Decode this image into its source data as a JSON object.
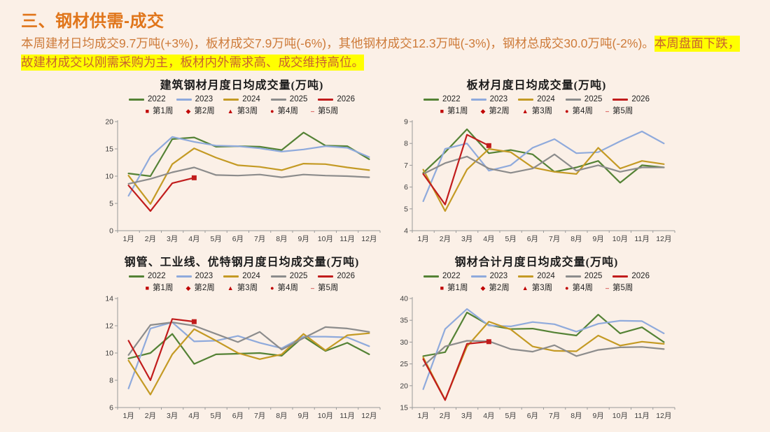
{
  "page": {
    "background": "#FBF0E7"
  },
  "header": {
    "title": "三、钢材供需-成交",
    "color": "#E0751A"
  },
  "summary": {
    "normal": "本周建材日均成交9.7万吨(+3%)，板材成交7.9万吨(-6%)，其他钢材成交12.3万吨(-3%)，钢材总成交30.0万吨(-2%)。",
    "highlight": "本周盘面下跌，故建材成交以刚需采购为主，板材内外需求高、成交维持高位。",
    "text_color": "#CE7B3A",
    "highlight_bg": "#FFFF00",
    "highlight_color": "#C8622F"
  },
  "week_legend": {
    "color": "#C00000",
    "items": [
      {
        "marker": "■",
        "label": "第1周"
      },
      {
        "marker": "◆",
        "label": "第2周"
      },
      {
        "marker": "▲",
        "label": "第3周"
      },
      {
        "marker": "●",
        "label": "第4周"
      },
      {
        "marker": "–",
        "label": "第5周"
      }
    ]
  },
  "chart_data": [
    {
      "type": "line",
      "title": "建筑钢材月度日均成交量(万吨)",
      "categories": [
        "1月",
        "2月",
        "3月",
        "4月",
        "5月",
        "6月",
        "7月",
        "8月",
        "9月",
        "10月",
        "11月",
        "12月"
      ],
      "ylim": [
        0,
        20
      ],
      "yticks": [
        0,
        5,
        10,
        15,
        20
      ],
      "legend_position": "top",
      "grid": false,
      "series": [
        {
          "name": "2022",
          "color": "#548235",
          "values": [
            10.5,
            10.0,
            16.8,
            17.1,
            15.4,
            15.5,
            15.4,
            14.8,
            18.0,
            15.6,
            15.5,
            13.1
          ]
        },
        {
          "name": "2023",
          "color": "#8FAADC",
          "values": [
            6.4,
            13.6,
            17.2,
            16.3,
            15.6,
            15.5,
            15.1,
            14.5,
            14.9,
            15.5,
            15.2,
            13.5
          ]
        },
        {
          "name": "2024",
          "color": "#C49A24",
          "values": [
            10.1,
            4.9,
            12.2,
            15.1,
            13.4,
            12.0,
            11.7,
            11.1,
            12.3,
            12.2,
            11.6,
            11.1
          ]
        },
        {
          "name": "2025",
          "color": "#8C8C8C",
          "values": [
            8.6,
            9.5,
            10.7,
            11.6,
            10.2,
            10.1,
            10.3,
            9.8,
            10.3,
            10.1,
            10.0,
            9.8
          ]
        },
        {
          "name": "2026",
          "color": "#C11C1C",
          "values": [
            8.3,
            3.6,
            8.7,
            9.7
          ],
          "end_marker": "square"
        }
      ]
    },
    {
      "type": "line",
      "title": "板材月度日均成交量(万吨)",
      "categories": [
        "1月",
        "2月",
        "3月",
        "4月",
        "5月",
        "6月",
        "7月",
        "8月",
        "9月",
        "10月",
        "11月",
        "12月"
      ],
      "ylim": [
        4,
        9
      ],
      "yticks": [
        4,
        5,
        6,
        7,
        8,
        9
      ],
      "legend_position": "top",
      "grid": false,
      "series": [
        {
          "name": "2022",
          "color": "#548235",
          "values": [
            6.65,
            7.6,
            8.65,
            7.55,
            7.7,
            7.5,
            6.7,
            6.9,
            7.2,
            6.2,
            7.0,
            6.9
          ]
        },
        {
          "name": "2023",
          "color": "#8FAADC",
          "values": [
            5.35,
            7.75,
            8.0,
            6.75,
            7.0,
            7.8,
            8.2,
            7.55,
            7.6,
            8.1,
            8.55,
            8.0
          ]
        },
        {
          "name": "2024",
          "color": "#C49A24",
          "values": [
            6.8,
            4.9,
            6.8,
            7.75,
            7.6,
            6.9,
            6.7,
            6.6,
            7.8,
            6.85,
            7.2,
            7.05
          ]
        },
        {
          "name": "2025",
          "color": "#8C8C8C",
          "values": [
            6.6,
            7.1,
            7.4,
            6.85,
            6.65,
            6.85,
            7.5,
            6.75,
            7.0,
            6.7,
            6.9,
            6.9
          ]
        },
        {
          "name": "2026",
          "color": "#C11C1C",
          "values": [
            6.6,
            5.2,
            8.4,
            7.9
          ],
          "end_marker": "square"
        }
      ]
    },
    {
      "type": "line",
      "title": "钢管、工业线、优特钢月度日均成交量(万吨)",
      "categories": [
        "1月",
        "2月",
        "3月",
        "4月",
        "5月",
        "6月",
        "7月",
        "8月",
        "9月",
        "10月",
        "11月",
        "12月"
      ],
      "ylim": [
        6,
        14
      ],
      "yticks": [
        6,
        8,
        10,
        12,
        14
      ],
      "legend_position": "top",
      "grid": false,
      "series": [
        {
          "name": "2022",
          "color": "#548235",
          "values": [
            9.6,
            10.0,
            11.4,
            9.2,
            9.9,
            9.95,
            10.0,
            9.8,
            11.2,
            10.15,
            10.75,
            9.9
          ]
        },
        {
          "name": "2023",
          "color": "#8FAADC",
          "values": [
            7.4,
            11.8,
            12.25,
            10.85,
            10.9,
            11.25,
            10.75,
            10.35,
            11.2,
            11.2,
            11.15,
            10.5
          ]
        },
        {
          "name": "2024",
          "color": "#C49A24",
          "values": [
            9.45,
            6.95,
            9.9,
            11.75,
            10.9,
            10.0,
            9.55,
            9.9,
            11.4,
            10.2,
            11.3,
            11.45
          ]
        },
        {
          "name": "2025",
          "color": "#8C8C8C",
          "values": [
            9.85,
            12.05,
            12.25,
            12.0,
            11.4,
            10.8,
            11.55,
            10.25,
            11.1,
            11.9,
            11.8,
            11.55
          ]
        },
        {
          "name": "2026",
          "color": "#C11C1C",
          "values": [
            10.9,
            8.0,
            12.5,
            12.3
          ],
          "end_marker": "square"
        }
      ]
    },
    {
      "type": "line",
      "title": "钢材合计月度日均成交量(万吨)",
      "categories": [
        "1月",
        "2月",
        "3月",
        "4月",
        "5月",
        "6月",
        "7月",
        "8月",
        "9月",
        "10月",
        "11月",
        "12月"
      ],
      "ylim": [
        15,
        40
      ],
      "yticks": [
        15,
        20,
        25,
        30,
        35,
        40
      ],
      "legend_position": "top",
      "grid": false,
      "series": [
        {
          "name": "2022",
          "color": "#548235",
          "values": [
            26.8,
            27.7,
            36.8,
            33.9,
            33.0,
            33.1,
            32.2,
            31.5,
            36.3,
            32.0,
            33.4,
            30.0
          ]
        },
        {
          "name": "2023",
          "color": "#8FAADC",
          "values": [
            19.2,
            33.0,
            37.6,
            33.8,
            33.6,
            34.6,
            34.1,
            32.4,
            34.2,
            34.9,
            34.8,
            32.0
          ]
        },
        {
          "name": "2024",
          "color": "#C49A24",
          "values": [
            26.5,
            16.8,
            29.0,
            34.7,
            32.9,
            29.0,
            28.0,
            27.9,
            31.5,
            29.2,
            30.1,
            29.6
          ]
        },
        {
          "name": "2025",
          "color": "#8C8C8C",
          "values": [
            24.5,
            29.0,
            30.3,
            30.2,
            28.4,
            27.8,
            29.3,
            26.8,
            28.2,
            28.8,
            28.9,
            28.4
          ]
        },
        {
          "name": "2026",
          "color": "#C11C1C",
          "values": [
            26.1,
            16.7,
            29.6,
            30.1
          ],
          "end_marker": "square"
        }
      ]
    }
  ]
}
